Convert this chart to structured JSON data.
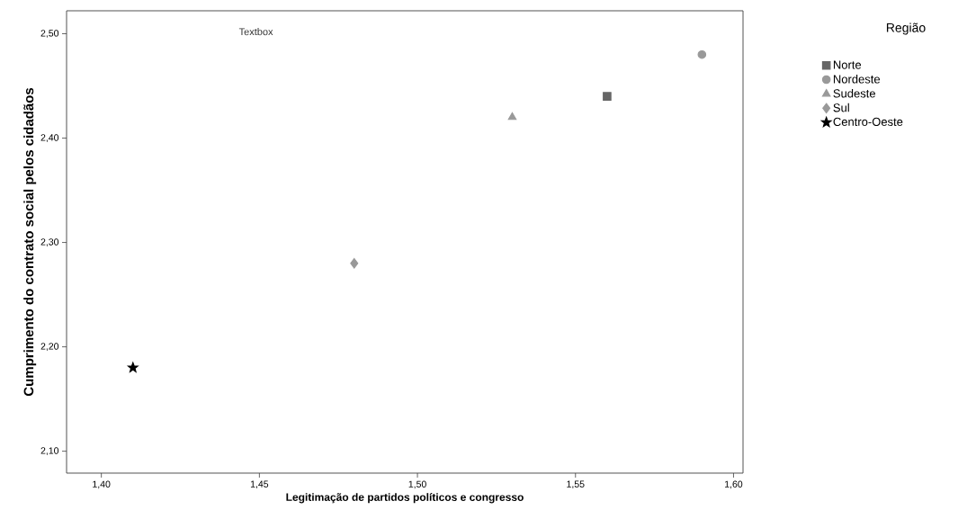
{
  "chart_data": {
    "type": "scatter",
    "xlabel": "Legitimação de partidos políticos e congresso",
    "ylabel": "Cumprimento do contrato social pelos cidadãos",
    "legend_title": "Região",
    "annotations": [
      "Textbox"
    ],
    "xlim": [
      1.389,
      1.603
    ],
    "ylim": [
      2.079,
      2.522
    ],
    "xticks": [
      {
        "value": 1.4,
        "label": "1,40"
      },
      {
        "value": 1.45,
        "label": "1,45"
      },
      {
        "value": 1.5,
        "label": "1,50"
      },
      {
        "value": 1.55,
        "label": "1,55"
      },
      {
        "value": 1.6,
        "label": "1,60"
      }
    ],
    "yticks": [
      {
        "value": 2.1,
        "label": "2,10"
      },
      {
        "value": 2.2,
        "label": "2,20"
      },
      {
        "value": 2.3,
        "label": "2,30"
      },
      {
        "value": 2.4,
        "label": "2,40"
      },
      {
        "value": 2.5,
        "label": "2,50"
      }
    ],
    "legend": "right",
    "grid": false,
    "series": [
      {
        "name": "Norte",
        "color": "#666666",
        "marker": "square",
        "x": [
          1.56
        ],
        "values": [
          2.44
        ]
      },
      {
        "name": "Nordeste",
        "color": "#999999",
        "marker": "circle",
        "x": [
          1.59
        ],
        "values": [
          2.48
        ]
      },
      {
        "name": "Sudeste",
        "color": "#999999",
        "marker": "triangle",
        "x": [
          1.53
        ],
        "values": [
          2.42
        ]
      },
      {
        "name": "Sul",
        "color": "#999999",
        "marker": "diamond",
        "x": [
          1.48
        ],
        "values": [
          2.28
        ]
      },
      {
        "name": "Centro-Oeste",
        "color": "#000000",
        "marker": "star",
        "x": [
          1.41
        ],
        "values": [
          2.18
        ]
      }
    ]
  }
}
